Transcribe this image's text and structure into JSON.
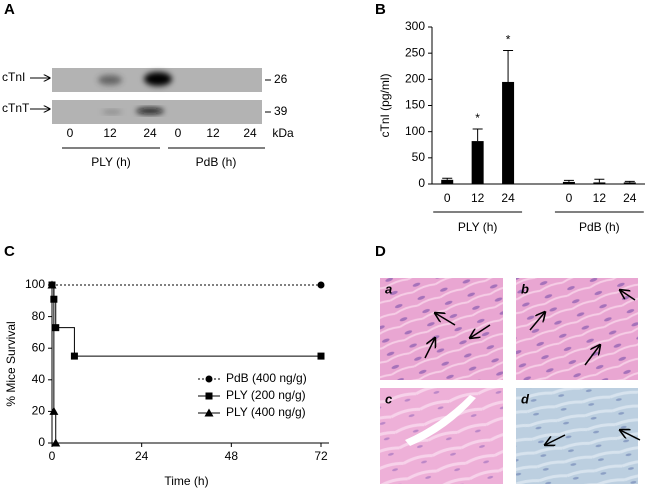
{
  "panel_labels": [
    "A",
    "B",
    "C",
    "D"
  ],
  "blot": {
    "rows": [
      "cTnI",
      "cTnT"
    ],
    "markers": [
      "26",
      "39"
    ],
    "lanes": [
      "0",
      "12",
      "24",
      "0",
      "12",
      "24"
    ],
    "unit": "kDa",
    "groups": [
      "PLY (h)",
      "PdB (h)"
    ]
  },
  "chart_data": [
    {
      "type": "bar",
      "ylabel": "cTnI (pg/ml)",
      "categories": [
        "0",
        "12",
        "24",
        null,
        "0",
        "12",
        "24"
      ],
      "values": [
        8,
        82,
        195,
        null,
        4,
        3,
        3
      ],
      "errors": [
        3,
        23,
        60,
        null,
        3,
        6,
        2
      ],
      "groups": [
        "PLY (h)",
        "PdB (h)"
      ],
      "annotations": [
        {
          "text": "*",
          "index": 1
        },
        {
          "text": "*",
          "index": 2
        }
      ],
      "color": "#000000",
      "ylim": [
        0,
        300
      ],
      "yticks": [
        0,
        50,
        100,
        150,
        200,
        250,
        300
      ]
    },
    {
      "type": "line",
      "xlabel": "Time (h)",
      "ylabel": "% Mice Survival",
      "xlim": [
        0,
        72
      ],
      "xticks": [
        0,
        24,
        48,
        72
      ],
      "ylim": [
        0,
        100
      ],
      "yticks": [
        0,
        20,
        40,
        60,
        80,
        100
      ],
      "legend": "lower right",
      "series": [
        {
          "name": "PdB (400 ng/g)",
          "color": "#000000",
          "marker": "circle",
          "dashed": true,
          "x": [
            0,
            72
          ],
          "values": [
            100,
            100
          ]
        },
        {
          "name": "PLY (200 ng/g)",
          "color": "#000000",
          "marker": "square",
          "dashed": false,
          "x": [
            0,
            0.5,
            1,
            6,
            72
          ],
          "values": [
            100,
            91,
            73,
            55,
            55
          ]
        },
        {
          "name": "PLY (400 ng/g)",
          "color": "#000000",
          "marker": "triangle",
          "dashed": false,
          "x": [
            0,
            0.5,
            1
          ],
          "values": [
            100,
            20,
            0
          ]
        }
      ]
    }
  ],
  "histology": {
    "labels": [
      "a",
      "b",
      "c",
      "d"
    ]
  }
}
